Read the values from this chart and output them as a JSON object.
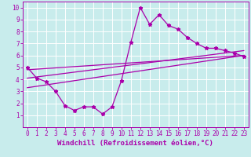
{
  "xlabel": "Windchill (Refroidissement éolien,°C)",
  "ylabel": "",
  "bg_color": "#c8ecec",
  "grid_color": "#ffffff",
  "line_color": "#aa00aa",
  "spine_color": "#aa00aa",
  "xlim": [
    -0.5,
    23.5
  ],
  "ylim": [
    0,
    10.5
  ],
  "xticks": [
    0,
    1,
    2,
    3,
    4,
    5,
    6,
    7,
    8,
    9,
    10,
    11,
    12,
    13,
    14,
    15,
    16,
    17,
    18,
    19,
    20,
    21,
    22,
    23
  ],
  "yticks": [
    1,
    2,
    3,
    4,
    5,
    6,
    7,
    8,
    9,
    10
  ],
  "line1_x": [
    0,
    1,
    2,
    3,
    4,
    5,
    6,
    7,
    8,
    9,
    10,
    11,
    12,
    13,
    14,
    15,
    16,
    17,
    18,
    19,
    20,
    21,
    22,
    23
  ],
  "line1_y": [
    5.0,
    4.1,
    3.8,
    3.0,
    1.8,
    1.4,
    1.7,
    1.7,
    1.1,
    1.7,
    3.9,
    7.1,
    10.0,
    8.6,
    9.4,
    8.5,
    8.2,
    7.5,
    7.0,
    6.6,
    6.6,
    6.4,
    6.2,
    5.9
  ],
  "line2_x": [
    0,
    23
  ],
  "line2_y": [
    4.8,
    6.0
  ],
  "line3_x": [
    0,
    23
  ],
  "line3_y": [
    4.1,
    6.4
  ],
  "line4_x": [
    0,
    23
  ],
  "line4_y": [
    3.3,
    6.0
  ],
  "xlabel_fontsize": 6.5,
  "tick_fontsize": 5.5
}
